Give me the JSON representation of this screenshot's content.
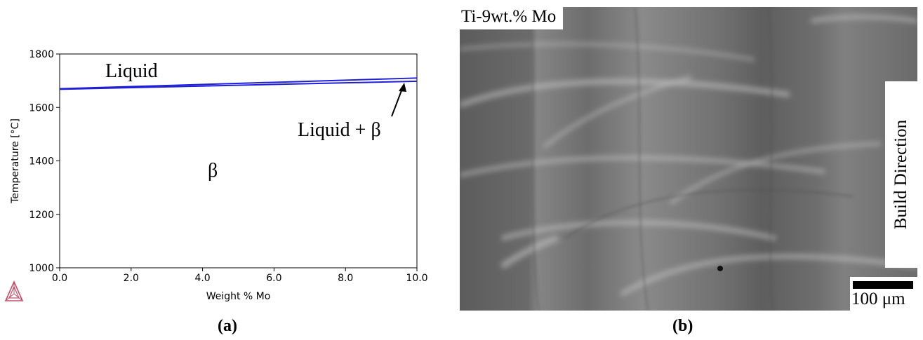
{
  "chart_data": {
    "type": "line",
    "title": "",
    "xlabel": "Weight % Mo",
    "ylabel": "Temperature [°C]",
    "xlim": [
      0.0,
      10.0
    ],
    "ylim": [
      1000,
      1800
    ],
    "x_ticks": [
      "0.0",
      "2.0",
      "4.0",
      "6.0",
      "8.0",
      "10.0"
    ],
    "y_ticks": [
      "1000",
      "1200",
      "1400",
      "1600",
      "1800"
    ],
    "series": [
      {
        "x": [
          0.0,
          10.0
        ],
        "y": [
          1670,
          1710
        ],
        "color": "#1f1fd6"
      },
      {
        "x": [
          0.0,
          10.0
        ],
        "y": [
          1668,
          1698
        ],
        "color": "#1f1fd6"
      }
    ],
    "annotations": [
      "Liquid",
      "Liquid + β",
      "β"
    ],
    "grid": false
  },
  "captions": {
    "a": "(a)",
    "b": "(b)"
  },
  "micrograph": {
    "title": "Ti-9wt.% Mo",
    "build_direction": "Build Direction",
    "scale_label": "100 μm"
  },
  "colors": {
    "line": "#1f1fd6",
    "logo": "#c0506a"
  },
  "icons": [
    "thermo-calc-logo-icon",
    "build-direction-arrow-icon"
  ]
}
